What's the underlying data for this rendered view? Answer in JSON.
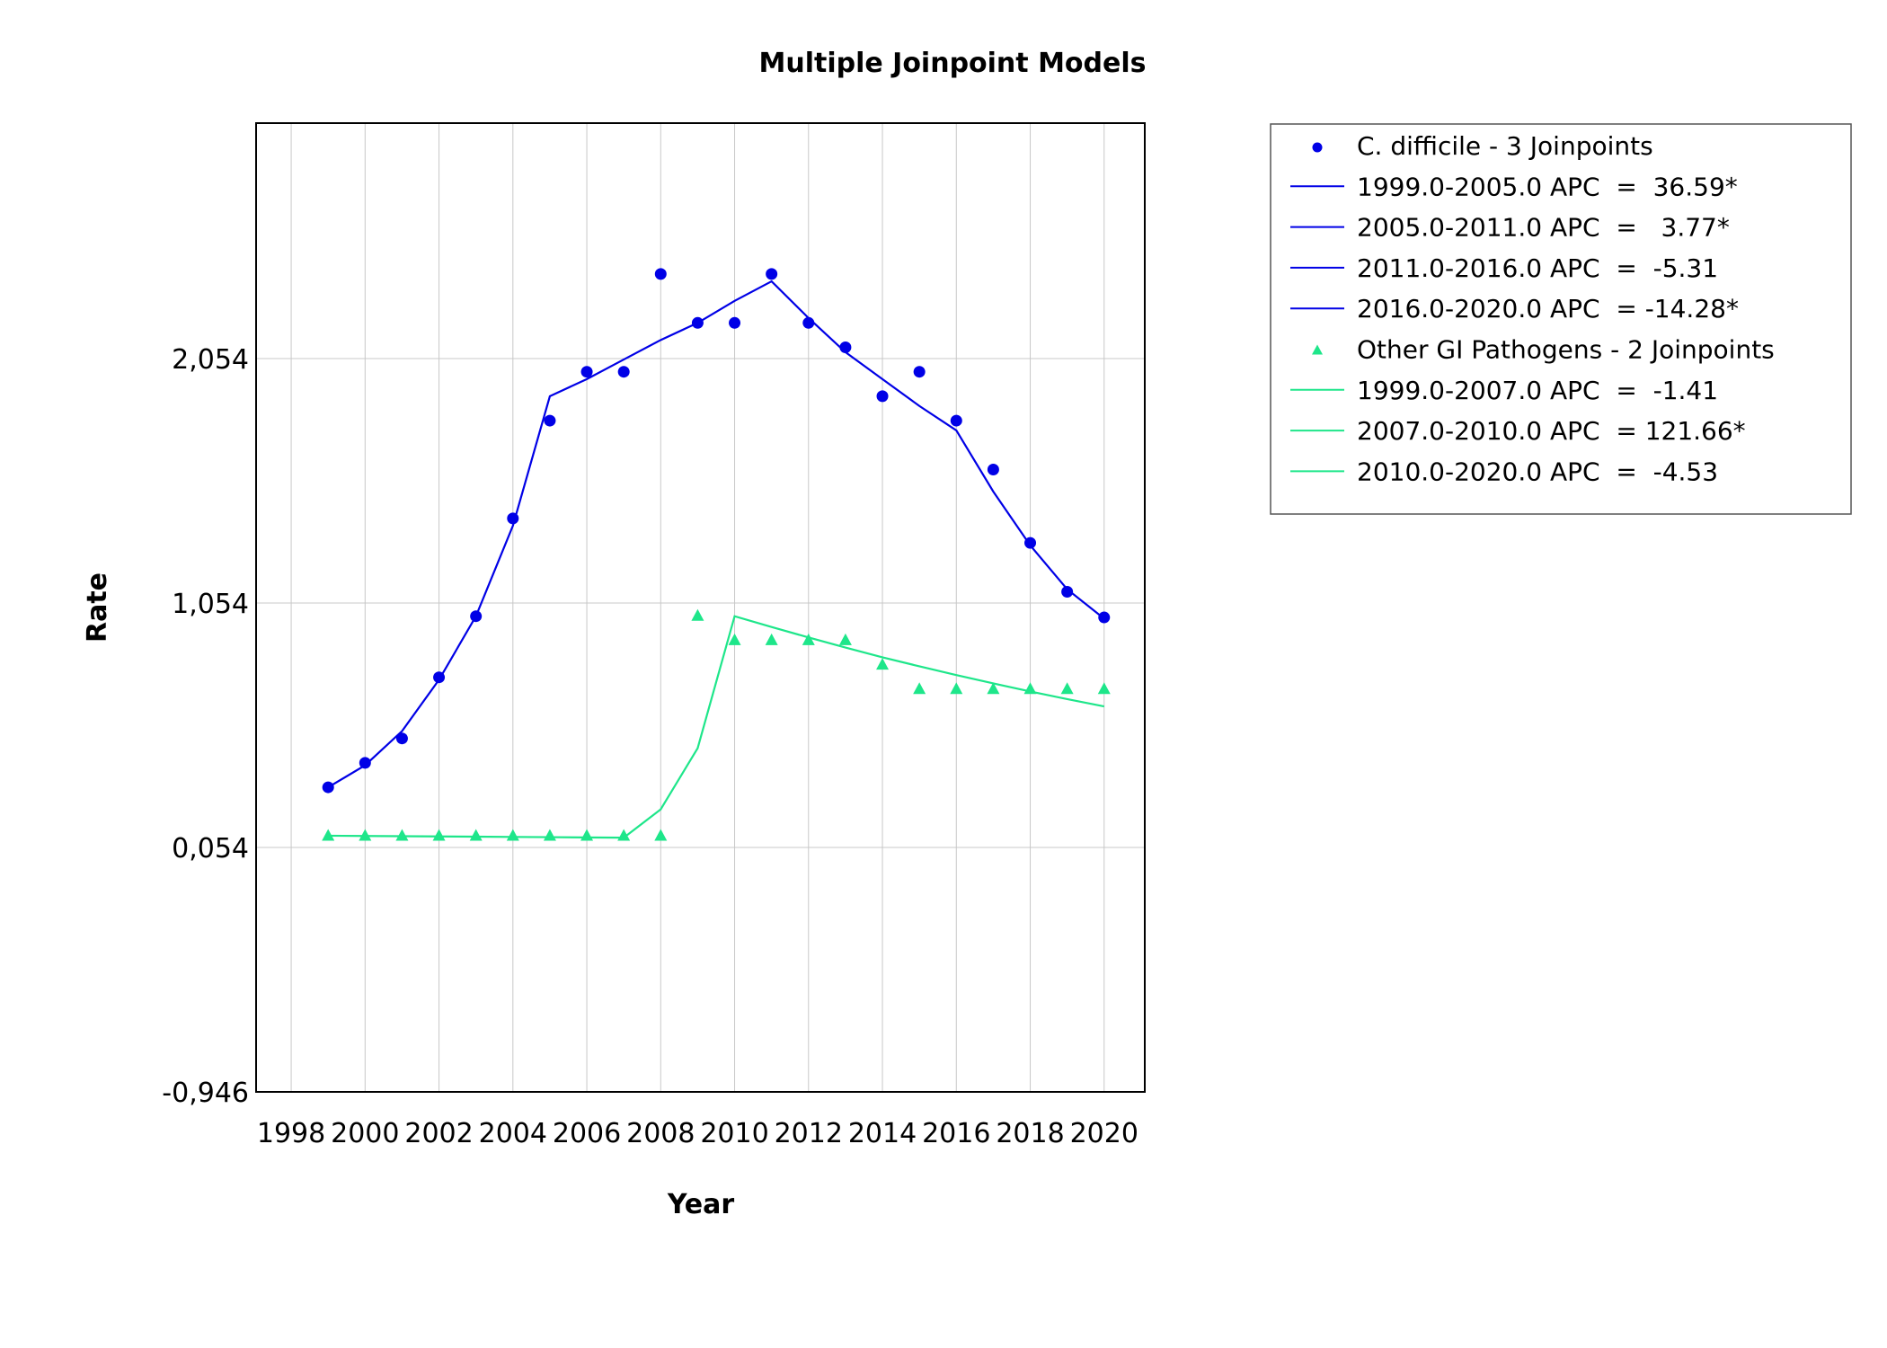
{
  "chart_data": {
    "type": "line",
    "title": "Multiple Joinpoint Models",
    "xlabel": "Year",
    "ylabel": "Rate",
    "xlim": [
      1998,
      2021
    ],
    "ylim": [
      -0.946,
      3.0
    ],
    "x_ticks": [
      1998,
      2000,
      2002,
      2004,
      2006,
      2008,
      2010,
      2012,
      2014,
      2016,
      2018,
      2020
    ],
    "x_tick_labels": [
      "1998",
      "2000",
      "2002",
      "2004",
      "2006",
      "2008",
      "2010",
      "2012",
      "2014",
      "2016",
      "2018",
      "2020"
    ],
    "y_ticks": [
      -0.946,
      0.054,
      1.054,
      2.054
    ],
    "y_tick_labels": [
      "-0,946",
      "0,054",
      "1,054",
      "2,054"
    ],
    "grid": true,
    "legend_position": "right",
    "series": [
      {
        "name": "C. difficile - 3 Joinpoints",
        "color": "#0000e6",
        "marker": "circle",
        "observed": {
          "x": [
            1999,
            2000,
            2001,
            2002,
            2003,
            2004,
            2005,
            2006,
            2007,
            2008,
            2009,
            2010,
            2011,
            2012,
            2013,
            2014,
            2015,
            2016,
            2017,
            2018,
            2019,
            2020
          ],
          "y": [
            0.3,
            0.4,
            0.5,
            0.75,
            1.0,
            1.4,
            1.8,
            2.0,
            2.0,
            2.4,
            2.2,
            2.2,
            2.4,
            2.2,
            2.1,
            1.9,
            2.0,
            1.8,
            1.6,
            1.3,
            1.1,
            0.995
          ]
        },
        "fitted": {
          "x": [
            1999,
            2000,
            2001,
            2002,
            2003,
            2004,
            2005,
            2006,
            2007,
            2008,
            2009,
            2010,
            2011,
            2012,
            2013,
            2014,
            2015,
            2016,
            2017,
            2018,
            2019,
            2020
          ],
          "y": [
            0.3,
            0.39,
            0.53,
            0.74,
            1.0,
            1.37,
            1.9,
            1.97,
            2.05,
            2.13,
            2.2,
            2.29,
            2.37,
            2.22,
            2.08,
            1.97,
            1.86,
            1.76,
            1.51,
            1.29,
            1.11,
            0.99
          ]
        },
        "segments": [
          {
            "label": "1999.0-2005.0 APC  =  36.59*"
          },
          {
            "label": "2005.0-2011.0 APC  =   3.77*"
          },
          {
            "label": "2011.0-2016.0 APC  =  -5.31"
          },
          {
            "label": "2016.0-2020.0 APC  = -14.28*"
          }
        ]
      },
      {
        "name": "Other GI Pathogens - 2 Joinpoints",
        "color": "#1ee68a",
        "marker": "triangle",
        "observed": {
          "x": [
            1999,
            2000,
            2001,
            2002,
            2003,
            2004,
            2005,
            2006,
            2007,
            2008,
            2009,
            2010,
            2011,
            2012,
            2013,
            2014,
            2015,
            2016,
            2017,
            2018,
            2019,
            2020
          ],
          "y": [
            0.1,
            0.1,
            0.1,
            0.1,
            0.1,
            0.1,
            0.1,
            0.1,
            0.1,
            0.1,
            1.0,
            0.9,
            0.9,
            0.9,
            0.9,
            0.8,
            0.7,
            0.7,
            0.7,
            0.7,
            0.7,
            0.7
          ]
        },
        "fitted": {
          "x": [
            1999,
            2000,
            2001,
            2002,
            2003,
            2004,
            2005,
            2006,
            2007,
            2008,
            2009,
            2010,
            2011,
            2012,
            2013,
            2014,
            2015,
            2016,
            2017,
            2018,
            2019,
            2020
          ],
          "y": [
            0.102,
            0.101,
            0.1,
            0.099,
            0.098,
            0.097,
            0.096,
            0.095,
            0.094,
            0.21,
            0.46,
            1.0,
            0.956,
            0.913,
            0.872,
            0.832,
            0.795,
            0.759,
            0.725,
            0.692,
            0.661,
            0.631
          ]
        },
        "segments": [
          {
            "label": "1999.0-2007.0 APC  =  -1.41"
          },
          {
            "label": "2007.0-2010.0 APC  = 121.66*"
          },
          {
            "label": "2010.0-2020.0 APC  =  -4.53"
          }
        ]
      }
    ]
  }
}
